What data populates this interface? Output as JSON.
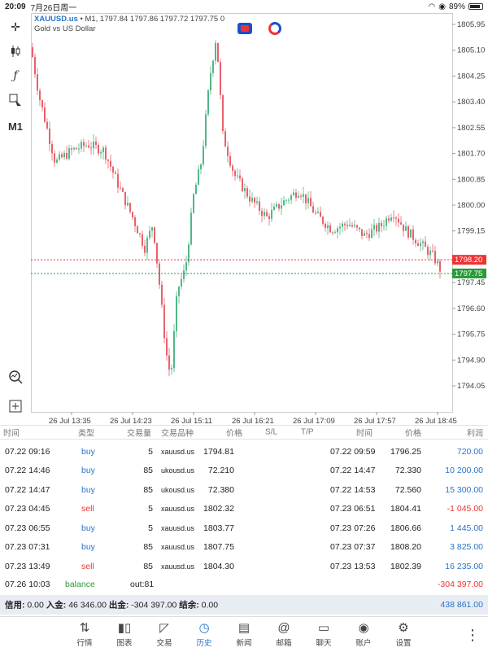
{
  "status": {
    "time": "20:09",
    "date": "7月26日周一",
    "battery": "89%"
  },
  "chart": {
    "symbol": "XAUUSD.us",
    "header": "• M1, 1797.84 1797.86 1797.72 1797.75 0",
    "subtitle": "Gold vs US Dollar",
    "y_ticks": [
      "1805.95",
      "1805.10",
      "1804.25",
      "1803.40",
      "1802.55",
      "1801.70",
      "1800.85",
      "1800.00",
      "1799.15",
      "1797.45",
      "1796.60",
      "1795.75",
      "1794.90",
      "1794.05"
    ],
    "x_ticks": [
      "26 Jul 13:35",
      "26 Jul 14:23",
      "26 Jul 15:11",
      "26 Jul 16:21",
      "26 Jul 17:09",
      "26 Jul 17:57",
      "26 Jul 18:45"
    ],
    "ask_line": "1798.20",
    "bid_line": "1797.75",
    "timeframe": "M1",
    "colors": {
      "up": "#52b788",
      "down": "#e8616b",
      "ask": "#e33",
      "bid": "#2a9a3a"
    }
  },
  "table": {
    "headers": [
      "时间",
      "类型",
      "交易量",
      "交易品种",
      "价格",
      "S/L",
      "T/P",
      "时间",
      "价格",
      "利润"
    ],
    "rows": [
      {
        "open_time": "07.22 09:16",
        "type": "buy",
        "volume": "5",
        "symbol": "xauusd.us",
        "open_price": "1794.81",
        "close_time": "07.22 09:59",
        "close_price": "1796.25",
        "profit": "720.00"
      },
      {
        "open_time": "07.22 14:46",
        "type": "buy",
        "volume": "85",
        "symbol": "ukousd.us",
        "open_price": "72.210",
        "close_time": "07.22 14:47",
        "close_price": "72.330",
        "profit": "10 200.00"
      },
      {
        "open_time": "07.22 14:47",
        "type": "buy",
        "volume": "85",
        "symbol": "ukousd.us",
        "open_price": "72.380",
        "close_time": "07.22 14:53",
        "close_price": "72.560",
        "profit": "15 300.00"
      },
      {
        "open_time": "07.23 04:45",
        "type": "sell",
        "volume": "5",
        "symbol": "xauusd.us",
        "open_price": "1802.32",
        "close_time": "07.23 06:51",
        "close_price": "1804.41",
        "profit": "-1 045.00"
      },
      {
        "open_time": "07.23 06:55",
        "type": "buy",
        "volume": "5",
        "symbol": "xauusd.us",
        "open_price": "1803.77",
        "close_time": "07.23 07:26",
        "close_price": "1806.66",
        "profit": "1 445.00"
      },
      {
        "open_time": "07.23 07:31",
        "type": "buy",
        "volume": "85",
        "symbol": "xauusd.us",
        "open_price": "1807.75",
        "close_time": "07.23 07:37",
        "close_price": "1808.20",
        "profit": "3 825.00"
      },
      {
        "open_time": "07.23 13:49",
        "type": "sell",
        "volume": "85",
        "symbol": "xauusd.us",
        "open_price": "1804.30",
        "close_time": "07.23 13:53",
        "close_price": "1802.39",
        "profit": "16 235.00"
      }
    ],
    "balance_row": {
      "time": "07.26 10:03",
      "type": "balance",
      "comment": "out:81",
      "profit": "-304 397.00"
    }
  },
  "summary": {
    "credit_label": "信用:",
    "credit": "0.00",
    "deposit_label": "入金:",
    "deposit": "46 346.00",
    "withdraw_label": "出金:",
    "withdraw": "-304 397.00",
    "balance_label": "结余:",
    "balance": "0.00",
    "total": "438 861.00"
  },
  "nav": [
    {
      "label": "行情",
      "icon": "quotes-icon"
    },
    {
      "label": "图表",
      "icon": "chart-icon"
    },
    {
      "label": "交易",
      "icon": "trade-icon"
    },
    {
      "label": "历史",
      "icon": "history-icon",
      "active": true
    },
    {
      "label": "新闻",
      "icon": "news-icon"
    },
    {
      "label": "邮箱",
      "icon": "mail-icon"
    },
    {
      "label": "聊天",
      "icon": "chat-icon"
    },
    {
      "label": "账户",
      "icon": "account-icon"
    },
    {
      "label": "设置",
      "icon": "settings-icon"
    }
  ]
}
